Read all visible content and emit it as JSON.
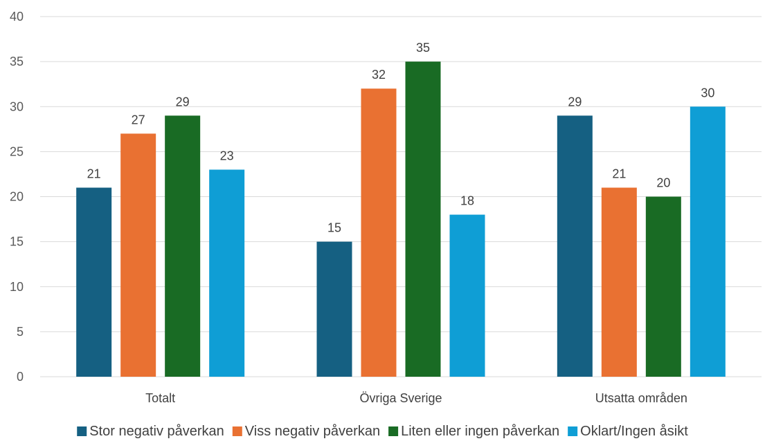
{
  "chart_data": {
    "type": "bar",
    "categories": [
      "Totalt",
      "Övriga Sverige",
      "Utsatta områden"
    ],
    "series": [
      {
        "name": "Stor negativ påverkan",
        "color": "#156082",
        "values": [
          21,
          15,
          29
        ]
      },
      {
        "name": "Viss negativ påverkan",
        "color": "#e97132",
        "values": [
          27,
          32,
          21
        ]
      },
      {
        "name": "Liten eller ingen påverkan",
        "color": "#196b24",
        "values": [
          29,
          35,
          20
        ]
      },
      {
        "name": "Oklart/Ingen åsikt",
        "color": "#0f9ed5",
        "values": [
          23,
          18,
          30
        ]
      }
    ],
    "ylim": [
      0,
      40
    ],
    "yticks": [
      0,
      5,
      10,
      15,
      20,
      25,
      30,
      35,
      40
    ],
    "grid": true,
    "legend": "bottom",
    "data_labels": true
  }
}
